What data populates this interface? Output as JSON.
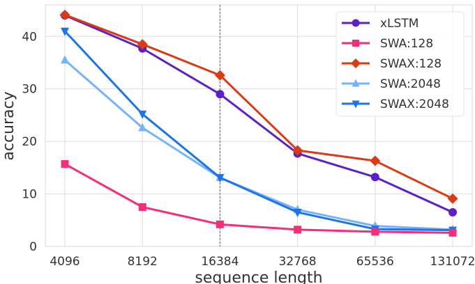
{
  "chart_data": {
    "type": "line",
    "title": "",
    "xlabel": "sequence length",
    "ylabel": "accuracy",
    "x": [
      "4096",
      "8192",
      "16384",
      "32768",
      "65536",
      "131072"
    ],
    "x_scale": "log2",
    "ylim": [
      0,
      46
    ],
    "yticks": [
      "0",
      "10",
      "20",
      "30",
      "40"
    ],
    "ytick_values": [
      0,
      10,
      20,
      30,
      40
    ],
    "grid": true,
    "legend_position": "top-right",
    "vline": {
      "x": "16384",
      "color": "#c0392b",
      "style": "dashed"
    },
    "series": [
      {
        "name": "xLSTM",
        "color": "#5b21c8",
        "marker": "circle",
        "values": [
          44.0,
          37.7,
          29.0,
          17.7,
          13.2,
          6.5
        ]
      },
      {
        "name": "SWA:128",
        "color": "#f72d7a",
        "marker": "square",
        "values": [
          15.7,
          7.5,
          4.2,
          3.2,
          2.8,
          2.6
        ]
      },
      {
        "name": "SWAX:128",
        "color": "#dc3a14",
        "marker": "diamond",
        "values": [
          44.1,
          38.5,
          32.6,
          18.3,
          16.3,
          9.1
        ]
      },
      {
        "name": "SWA:2048",
        "color": "#74b4fb",
        "marker": "triangle-up",
        "values": [
          35.5,
          22.6,
          13.1,
          7.0,
          3.9,
          3.2
        ]
      },
      {
        "name": "SWAX:2048",
        "color": "#1c74e8",
        "marker": "triangle-down",
        "values": [
          41.0,
          25.2,
          13.1,
          6.5,
          3.3,
          3.1
        ]
      }
    ]
  }
}
